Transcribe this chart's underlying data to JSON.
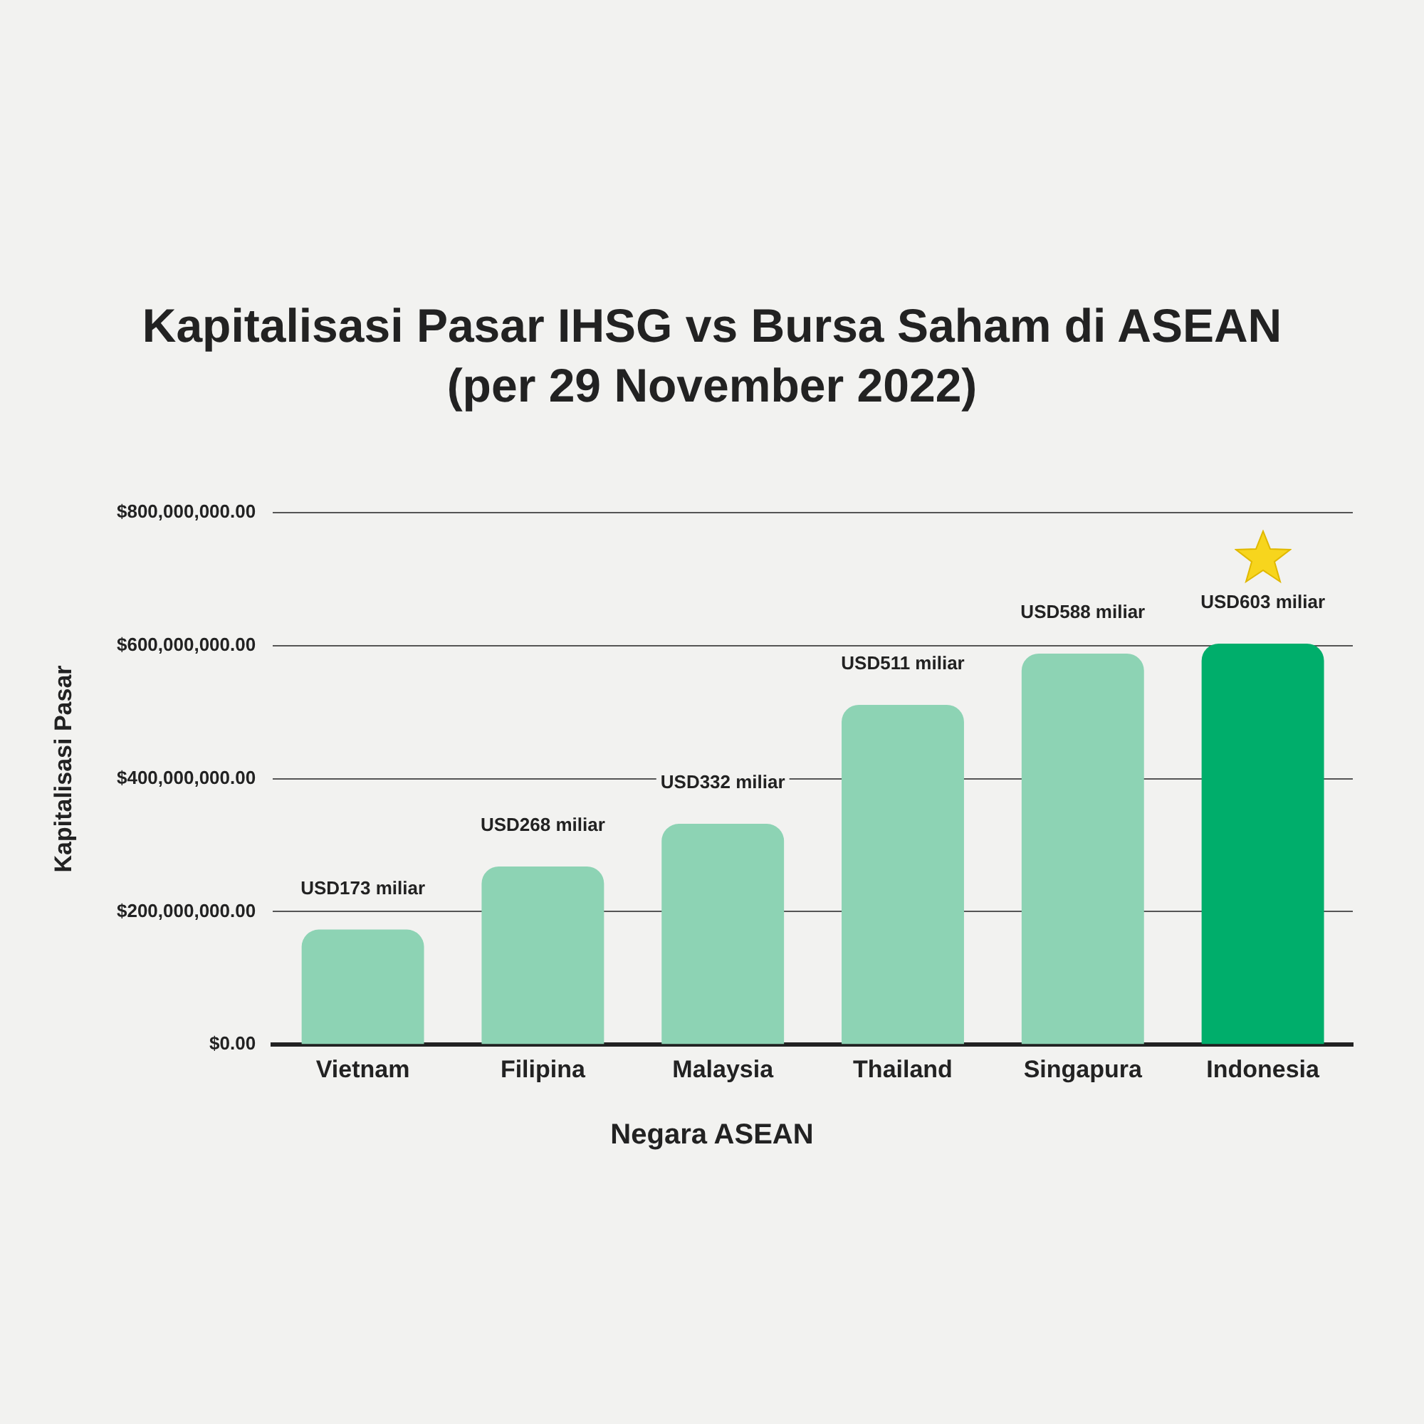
{
  "chart_data": {
    "type": "bar",
    "title": "Kapitalisasi Pasar IHSG vs Bursa Saham di ASEAN",
    "subtitle": "(per 29 November 2022)",
    "xlabel": "Negara ASEAN",
    "ylabel": "Kapitalisasi Pasar",
    "categories": [
      "Vietnam",
      "Filipina",
      "Malaysia",
      "Thailand",
      "Singapura",
      "Indonesia"
    ],
    "values": [
      173000000,
      268000000,
      332000000,
      511000000,
      588000000,
      603000000
    ],
    "value_labels": [
      "USD173 miliar",
      "USD268 miliar",
      "USD332 miliar",
      "USD511 miliar",
      "USD588 miliar",
      "USD603 miliar"
    ],
    "colors": [
      "#8dd3b4",
      "#8dd3b4",
      "#8dd3b4",
      "#8dd3b4",
      "#8dd3b4",
      "#00ae6b"
    ],
    "ylim": [
      0,
      800000000
    ],
    "yticks": [
      {
        "value": 0,
        "label": "$0.00"
      },
      {
        "value": 200000000,
        "label": "$200,000,000.00"
      },
      {
        "value": 400000000,
        "label": "$400,000,000.00"
      },
      {
        "value": 600000000,
        "label": "$600,000,000.00"
      },
      {
        "value": 800000000,
        "label": "$800,000,000.00"
      }
    ],
    "grid": "y",
    "legend": false
  }
}
